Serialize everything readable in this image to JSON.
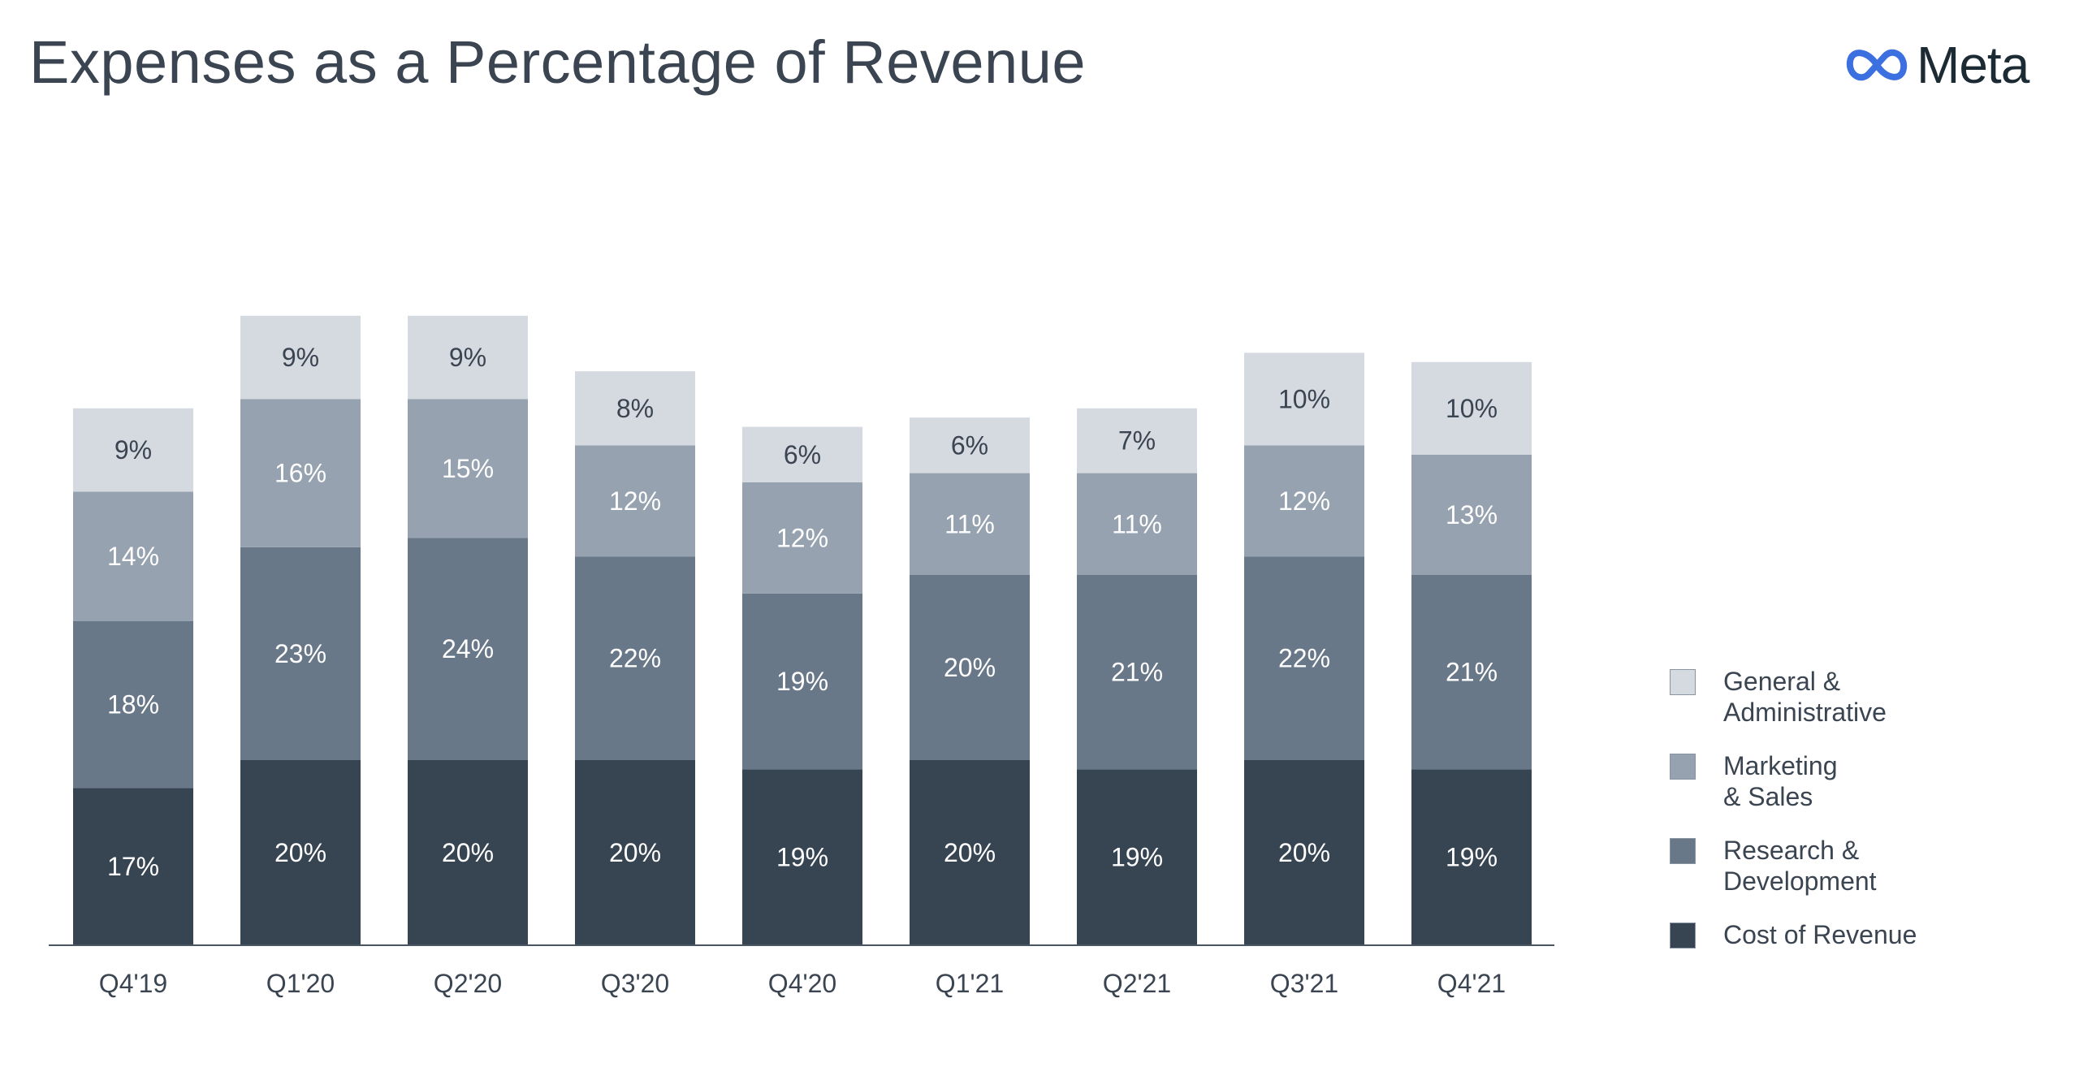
{
  "title": "Expenses as a Percentage of Revenue",
  "brand": {
    "name": "Meta",
    "logo_color": "#3c6fe0"
  },
  "chart_data": {
    "type": "bar",
    "stacked": true,
    "title": "Expenses as a Percentage of Revenue",
    "xlabel": "",
    "ylabel": "",
    "ylim": [
      0,
      75
    ],
    "grid": false,
    "legend_position": "right",
    "categories": [
      "Q4'19",
      "Q1'20",
      "Q2'20",
      "Q3'20",
      "Q4'20",
      "Q1'21",
      "Q2'21",
      "Q3'21",
      "Q4'21"
    ],
    "series": [
      {
        "name": "Cost of Revenue",
        "legend_label": "Cost of Revenue",
        "color": "#374553",
        "text_color": "#ffffff",
        "values": [
          17,
          20,
          20,
          20,
          19,
          20,
          19,
          20,
          19
        ],
        "labels": [
          "17%",
          "20%",
          "20%",
          "20%",
          "19%",
          "20%",
          "19%",
          "20%",
          "19%"
        ]
      },
      {
        "name": "Research & Development",
        "legend_label": "Research &\nDevelopment",
        "color": "#697888",
        "text_color": "#ffffff",
        "values": [
          18,
          23,
          24,
          22,
          19,
          20,
          21,
          22,
          21
        ],
        "labels": [
          "18%",
          "23%",
          "24%",
          "22%",
          "19%",
          "20%",
          "21%",
          "22%",
          "21%"
        ]
      },
      {
        "name": "Marketing & Sales",
        "legend_label": "Marketing\n& Sales",
        "color": "#96a2af",
        "text_color": "#ffffff",
        "values": [
          14,
          16,
          15,
          12,
          12,
          11,
          11,
          12,
          13
        ],
        "labels": [
          "14%",
          "16%",
          "15%",
          "12%",
          "12%",
          "11%",
          "11%",
          "12%",
          "13%"
        ]
      },
      {
        "name": "General & Administrative",
        "legend_label": "General &\nAdministrative",
        "color": "#d5d9e0",
        "text_color": "#3b4552",
        "values": [
          9,
          9,
          9,
          8,
          6,
          6,
          7,
          10,
          10
        ],
        "labels": [
          "9%",
          "9%",
          "9%",
          "8%",
          "6%",
          "6%",
          "7%",
          "10%",
          "10%"
        ]
      }
    ]
  }
}
